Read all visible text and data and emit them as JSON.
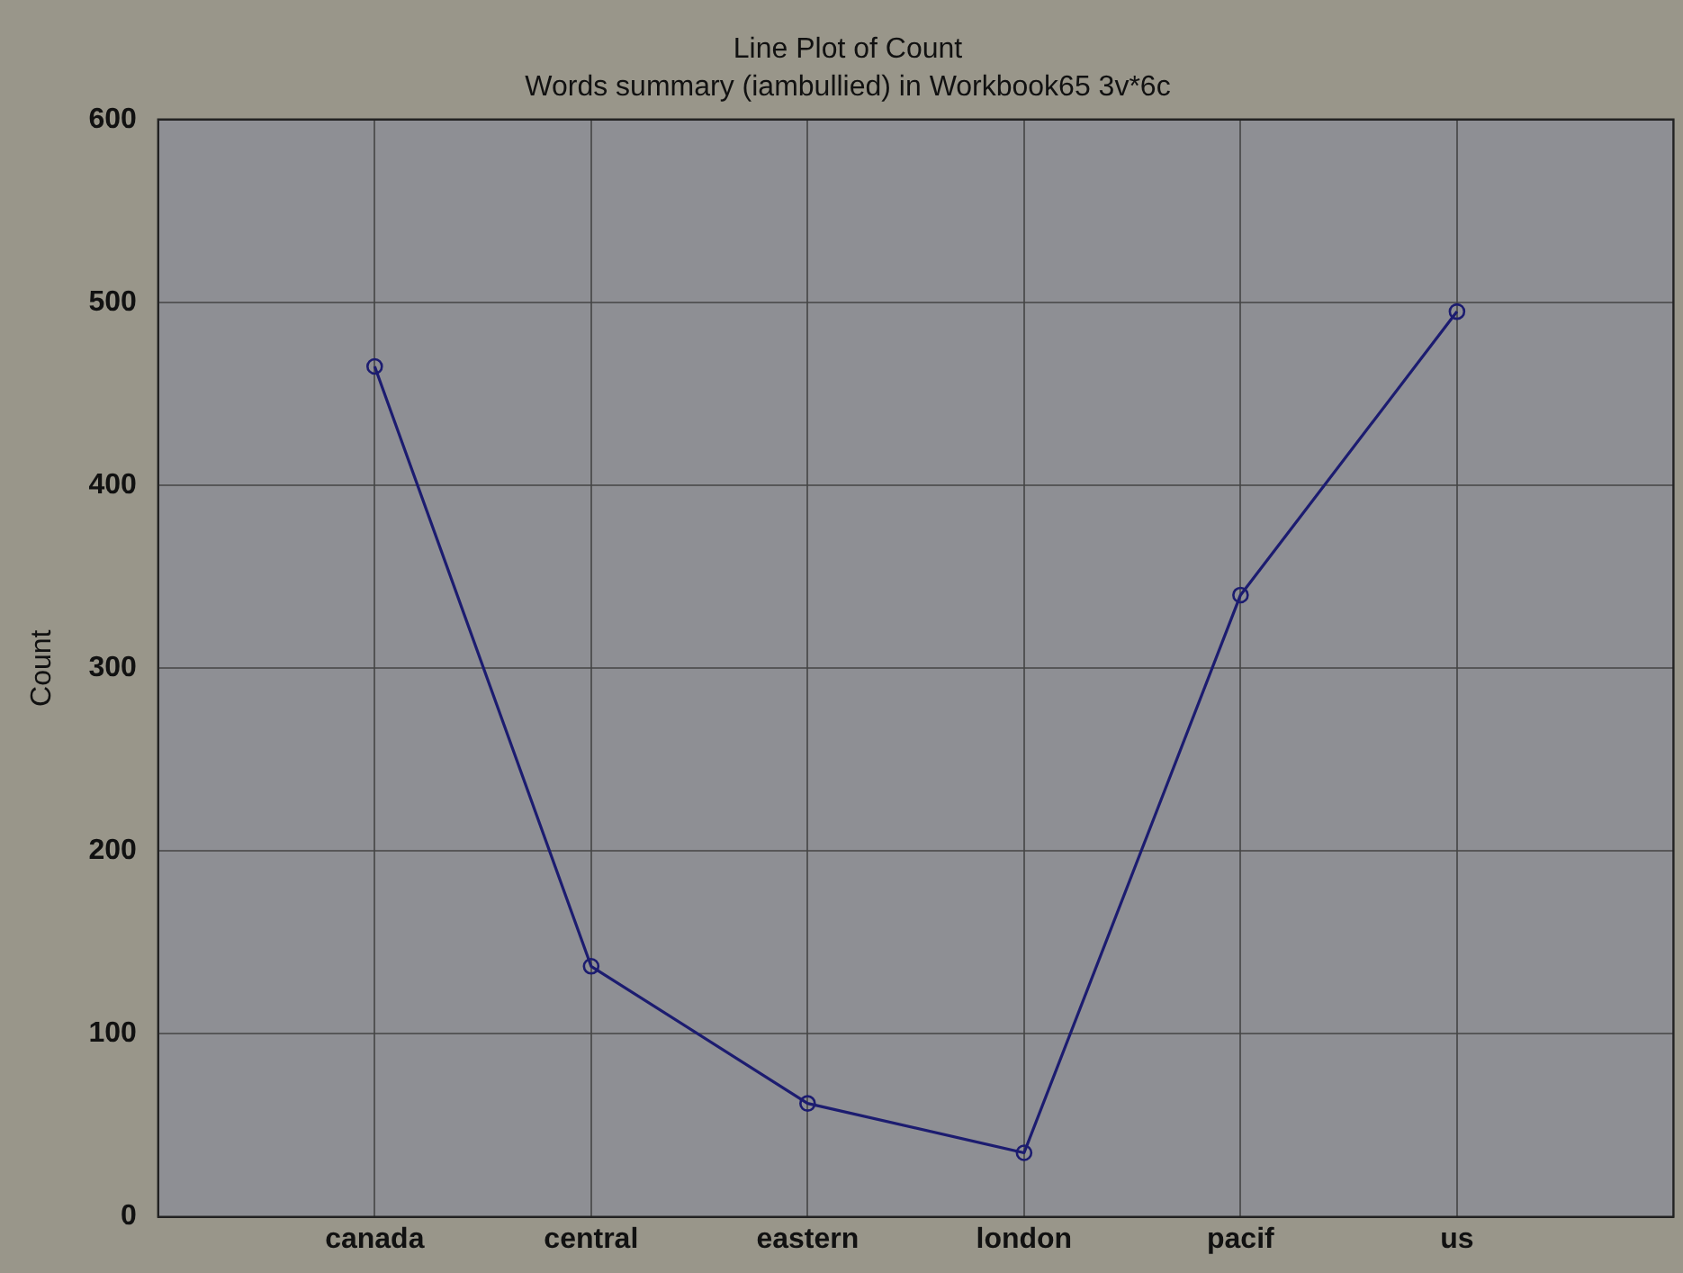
{
  "chart_data": {
    "type": "line",
    "title": "Line Plot of Count",
    "subtitle": "Words summary (iambullied) in Workbook65 3v*6c",
    "ylabel": "Count",
    "categories": [
      "canada",
      "central",
      "eastern",
      "london",
      "pacif",
      "us"
    ],
    "series": [
      {
        "color": "#1c1c70",
        "values": [
          465,
          137,
          62,
          35,
          340,
          495
        ]
      }
    ],
    "ylim": [
      0,
      600
    ],
    "yticks": [
      0,
      100,
      200,
      300,
      400,
      500,
      600
    ],
    "grid": true,
    "legend": false,
    "marker": "circle",
    "line_style": "solid"
  }
}
